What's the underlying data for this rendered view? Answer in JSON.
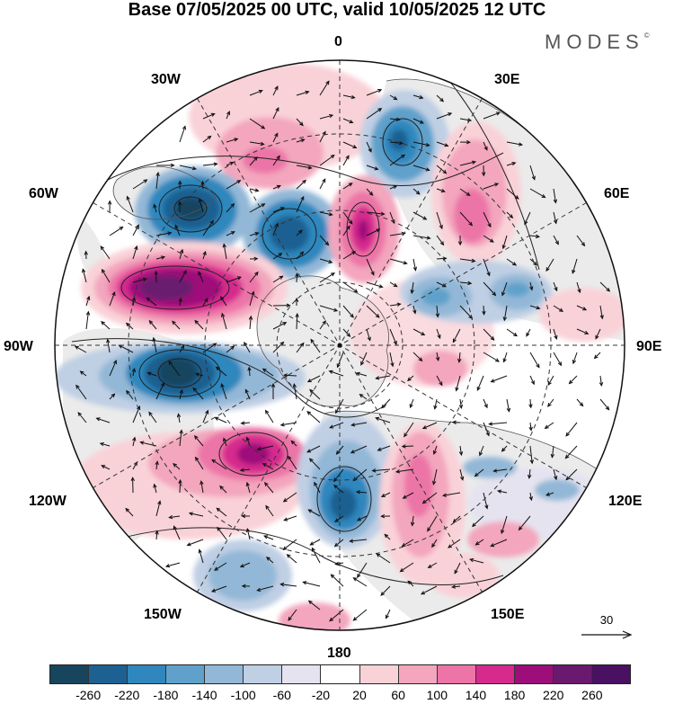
{
  "title": "Base 07/05/2025 00 UTC, valid 10/05/2025 12 UTC",
  "brand": "MODES",
  "brand_mark": "©",
  "longitude_labels": {
    "top": "0",
    "top_right": "30E",
    "upper_right": "60E",
    "right": "90E",
    "lower_right": "120E",
    "bottom_right": "150E",
    "bottom": "180",
    "bottom_left": "150W",
    "lower_left": "120W",
    "left": "90W",
    "upper_left": "60W",
    "top_left": "30W"
  },
  "reference_vector_label": "30",
  "legend": {
    "ticks": [
      "-260",
      "-220",
      "-180",
      "-140",
      "-100",
      "-60",
      "-20",
      "20",
      "60",
      "100",
      "140",
      "180",
      "220",
      "260"
    ],
    "colors": [
      "#18455e",
      "#1d6192",
      "#2f87bd",
      "#5fa1cb",
      "#93b8d7",
      "#bfcfe4",
      "#e5e3ef",
      "#ffffff",
      "#f9d2d8",
      "#f3a6bd",
      "#ec74a7",
      "#d62b8d",
      "#9e0e7a",
      "#6a1a6e",
      "#4a1062"
    ]
  },
  "projection": "north-polar-stereographic",
  "land_color": "#ebebeb",
  "ocean_color": "#ffffff"
}
